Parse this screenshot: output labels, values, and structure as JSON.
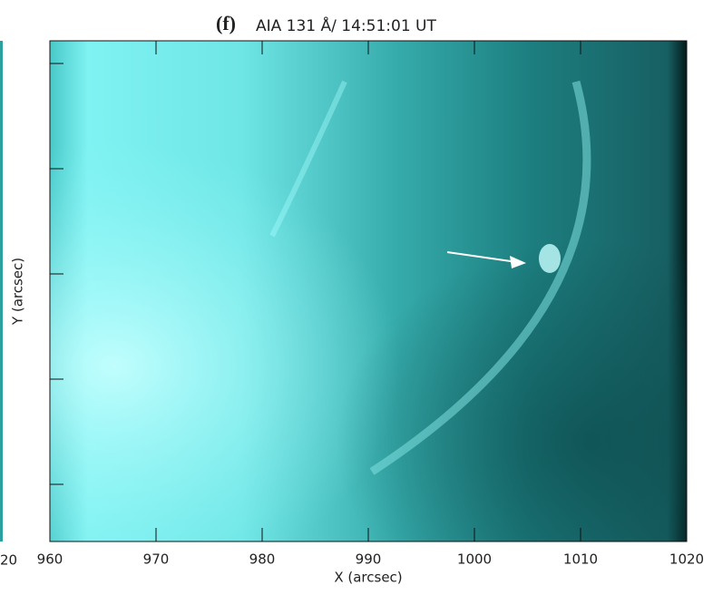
{
  "chart_data": {
    "type": "image",
    "panel_label": "(f)",
    "title": "AIA 131 Å/ 14:51:01 UT",
    "xlabel": "X (arcsec)",
    "ylabel": "Y (arcsec)",
    "neighbor_tick_label": "20",
    "xlim": [
      960,
      1020
    ],
    "xticks": [
      960,
      970,
      980,
      990,
      1000,
      1010,
      1020
    ]
  }
}
